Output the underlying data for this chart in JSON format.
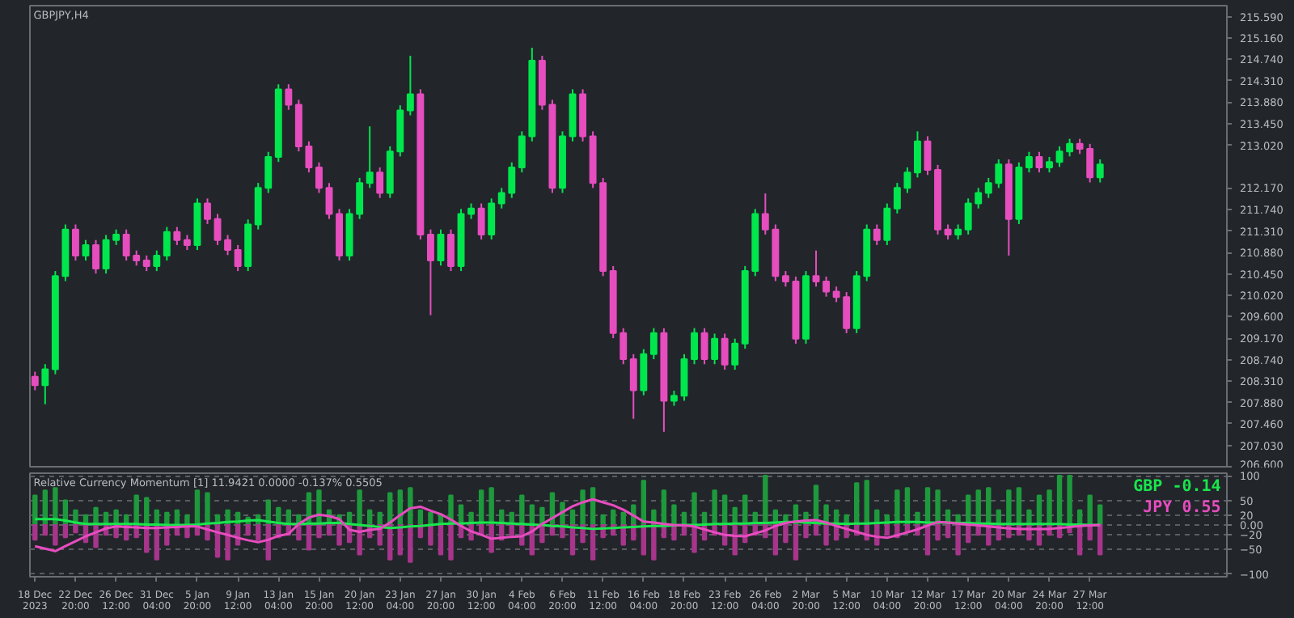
{
  "chart_data": [
    {
      "type": "candlestick",
      "title": "GBPJPY,H4",
      "tick_labels": "y",
      "grid": false,
      "ylim": [
        206.57,
        215.81
      ],
      "yticks": [
        {
          "value": 215.59,
          "label": "215.590"
        },
        {
          "value": 215.16,
          "label": "215.160"
        },
        {
          "value": 214.74,
          "label": "214.740"
        },
        {
          "value": 214.31,
          "label": "214.310"
        },
        {
          "value": 213.88,
          "label": "213.880"
        },
        {
          "value": 213.45,
          "label": "213.450"
        },
        {
          "value": 213.02,
          "label": "213.020"
        },
        {
          "value": 212.17,
          "label": "212.170"
        },
        {
          "value": 211.74,
          "label": "211.740"
        },
        {
          "value": 211.31,
          "label": "211.310"
        },
        {
          "value": 210.88,
          "label": "210.880"
        },
        {
          "value": 210.45,
          "label": "210.450"
        },
        {
          "value": 210.02,
          "label": "210.020"
        },
        {
          "value": 209.6,
          "label": "209.600"
        },
        {
          "value": 209.17,
          "label": "209.170"
        },
        {
          "value": 208.74,
          "label": "208.740"
        },
        {
          "value": 208.31,
          "label": "208.310"
        },
        {
          "value": 207.88,
          "label": "207.880"
        },
        {
          "value": 207.46,
          "label": "207.460"
        },
        {
          "value": 207.03,
          "label": "207.030"
        },
        {
          "value": 206.6,
          "label": "206.600"
        }
      ],
      "categories": [
        null,
        null,
        null,
        null,
        null,
        null,
        null,
        null,
        null,
        null,
        null,
        null,
        null,
        null,
        null,
        null,
        null,
        null,
        null,
        null,
        null,
        null,
        null,
        null,
        null,
        null,
        null,
        null,
        null,
        null,
        null,
        null,
        null,
        null,
        null,
        null,
        null,
        null,
        null,
        null,
        null,
        null,
        null,
        null,
        null,
        null,
        null,
        null,
        null,
        null,
        null,
        null,
        null,
        null,
        null,
        null,
        null,
        null,
        null,
        null,
        null,
        null,
        null,
        null,
        null,
        null,
        null,
        null,
        null,
        null,
        null,
        null,
        null,
        null,
        null,
        null,
        null,
        null,
        null,
        null,
        null,
        null,
        null,
        null,
        null,
        null,
        null,
        null,
        null,
        null,
        null,
        null,
        null,
        null,
        null,
        null,
        null,
        null,
        null,
        null,
        null,
        null,
        null,
        null,
        null,
        null,
        null,
        null,
        null,
        null,
        null,
        null,
        null,
        null,
        null,
        null,
        null,
        null
      ],
      "ohlc": [
        [
          208.4,
          208.5,
          208.13,
          208.23
        ],
        [
          208.23,
          208.65,
          207.85,
          208.55
        ],
        [
          208.55,
          210.51,
          208.45,
          210.41
        ],
        [
          210.41,
          211.44,
          210.31,
          211.34
        ],
        [
          211.34,
          211.44,
          210.72,
          210.82
        ],
        [
          210.82,
          211.13,
          210.72,
          211.03
        ],
        [
          211.03,
          211.13,
          210.46,
          210.56
        ],
        [
          210.56,
          211.23,
          210.46,
          211.13
        ],
        [
          211.13,
          211.34,
          211.03,
          211.24
        ],
        [
          211.24,
          211.34,
          210.72,
          210.82
        ],
        [
          210.82,
          210.92,
          210.62,
          210.72
        ],
        [
          210.72,
          210.82,
          210.51,
          210.61
        ],
        [
          210.61,
          210.92,
          210.51,
          210.82
        ],
        [
          210.82,
          211.39,
          210.72,
          211.29
        ],
        [
          211.29,
          211.39,
          211.03,
          211.13
        ],
        [
          211.13,
          211.23,
          210.93,
          211.03
        ],
        [
          211.03,
          211.96,
          210.93,
          211.86
        ],
        [
          211.86,
          211.96,
          211.45,
          211.55
        ],
        [
          211.55,
          211.65,
          211.03,
          211.13
        ],
        [
          211.13,
          211.23,
          210.83,
          210.93
        ],
        [
          210.93,
          211.03,
          210.51,
          210.61
        ],
        [
          210.61,
          211.54,
          210.51,
          211.44
        ],
        [
          211.44,
          212.27,
          211.34,
          212.17
        ],
        [
          212.17,
          212.89,
          212.07,
          212.79
        ],
        [
          212.79,
          214.24,
          212.69,
          214.14
        ],
        [
          214.14,
          214.24,
          213.73,
          213.83
        ],
        [
          213.83,
          213.93,
          212.9,
          213.0
        ],
        [
          213.0,
          213.1,
          212.48,
          212.58
        ],
        [
          212.58,
          212.68,
          212.07,
          212.17
        ],
        [
          212.17,
          212.27,
          211.55,
          211.65
        ],
        [
          211.65,
          211.75,
          210.72,
          210.82
        ],
        [
          210.82,
          211.75,
          210.72,
          211.65
        ],
        [
          211.65,
          212.37,
          211.55,
          212.27
        ],
        [
          212.27,
          213.4,
          212.17,
          212.48
        ],
        [
          212.48,
          212.58,
          211.97,
          212.07
        ],
        [
          212.07,
          213.0,
          211.97,
          212.9
        ],
        [
          212.9,
          213.82,
          212.8,
          213.72
        ],
        [
          213.72,
          214.81,
          213.62,
          214.04
        ],
        [
          214.04,
          214.14,
          211.14,
          211.24
        ],
        [
          211.24,
          211.34,
          209.63,
          210.72
        ],
        [
          210.72,
          211.34,
          210.62,
          211.24
        ],
        [
          211.24,
          211.34,
          210.51,
          210.61
        ],
        [
          210.61,
          211.75,
          210.51,
          211.65
        ],
        [
          211.65,
          211.86,
          211.55,
          211.76
        ],
        [
          211.76,
          211.86,
          211.14,
          211.24
        ],
        [
          211.24,
          211.96,
          211.14,
          211.86
        ],
        [
          211.86,
          212.17,
          211.76,
          212.07
        ],
        [
          212.07,
          212.68,
          211.97,
          212.58
        ],
        [
          212.58,
          213.3,
          212.48,
          213.2
        ],
        [
          213.2,
          214.97,
          213.1,
          214.71
        ],
        [
          214.71,
          214.81,
          213.73,
          213.83
        ],
        [
          213.83,
          213.93,
          212.07,
          212.17
        ],
        [
          212.17,
          213.3,
          212.07,
          213.2
        ],
        [
          213.2,
          214.14,
          213.1,
          214.04
        ],
        [
          214.04,
          214.14,
          213.1,
          213.2
        ],
        [
          213.2,
          213.3,
          212.17,
          212.27
        ],
        [
          212.27,
          212.37,
          210.41,
          210.51
        ],
        [
          210.51,
          210.61,
          209.17,
          209.27
        ],
        [
          209.27,
          209.37,
          208.65,
          208.75
        ],
        [
          208.75,
          208.85,
          207.56,
          208.13
        ],
        [
          208.13,
          208.95,
          208.03,
          208.85
        ],
        [
          208.85,
          209.37,
          208.75,
          209.27
        ],
        [
          209.27,
          209.37,
          207.3,
          207.92
        ],
        [
          207.92,
          208.12,
          207.82,
          208.02
        ],
        [
          208.02,
          208.85,
          207.92,
          208.75
        ],
        [
          208.75,
          209.37,
          208.65,
          209.27
        ],
        [
          209.27,
          209.37,
          208.65,
          208.75
        ],
        [
          208.75,
          209.26,
          208.65,
          209.16
        ],
        [
          209.16,
          209.26,
          208.54,
          208.64
        ],
        [
          208.64,
          209.16,
          208.54,
          209.06
        ],
        [
          209.06,
          210.61,
          208.96,
          210.51
        ],
        [
          210.51,
          211.75,
          210.41,
          211.65
        ],
        [
          211.65,
          212.06,
          211.24,
          211.34
        ],
        [
          211.34,
          211.44,
          210.31,
          210.41
        ],
        [
          210.41,
          210.51,
          210.2,
          210.3
        ],
        [
          210.3,
          210.4,
          209.06,
          209.16
        ],
        [
          209.16,
          210.51,
          209.06,
          210.41
        ],
        [
          210.41,
          210.92,
          210.2,
          210.3
        ],
        [
          210.3,
          210.4,
          210.0,
          210.1
        ],
        [
          210.1,
          210.2,
          209.89,
          209.99
        ],
        [
          209.99,
          210.09,
          209.27,
          209.37
        ],
        [
          209.37,
          210.51,
          209.27,
          210.41
        ],
        [
          210.41,
          211.44,
          210.31,
          211.34
        ],
        [
          211.34,
          211.44,
          211.03,
          211.13
        ],
        [
          211.13,
          211.86,
          211.03,
          211.76
        ],
        [
          211.76,
          212.27,
          211.66,
          212.17
        ],
        [
          212.17,
          212.58,
          212.07,
          212.48
        ],
        [
          212.48,
          213.3,
          212.38,
          213.1
        ],
        [
          213.1,
          213.2,
          212.43,
          212.53
        ],
        [
          212.53,
          212.63,
          211.24,
          211.34
        ],
        [
          211.34,
          211.44,
          211.14,
          211.24
        ],
        [
          211.24,
          211.44,
          211.14,
          211.34
        ],
        [
          211.34,
          211.96,
          211.24,
          211.86
        ],
        [
          211.86,
          212.17,
          211.76,
          212.07
        ],
        [
          212.07,
          212.37,
          211.97,
          212.27
        ],
        [
          212.27,
          212.74,
          212.17,
          212.64
        ],
        [
          212.64,
          212.74,
          210.82,
          211.55
        ],
        [
          211.55,
          212.68,
          211.45,
          212.58
        ],
        [
          212.58,
          212.89,
          212.48,
          212.79
        ],
        [
          212.79,
          212.89,
          212.48,
          212.58
        ],
        [
          212.58,
          212.79,
          212.48,
          212.69
        ],
        [
          212.69,
          213.0,
          212.59,
          212.9
        ],
        [
          212.9,
          213.15,
          212.8,
          213.05
        ],
        [
          213.05,
          213.15,
          212.85,
          212.95
        ],
        [
          212.95,
          213.05,
          212.28,
          212.38
        ],
        [
          212.38,
          212.74,
          212.28,
          212.64
        ],
        null,
        null,
        null,
        null,
        null,
        null,
        null,
        null,
        null,
        null,
        null,
        null
      ],
      "colors": [
        "#e64dbe",
        "#00e64d",
        "#00e64d",
        "#00e64d",
        "#e64dbe",
        "#00e64d",
        "#e64dbe",
        "#00e64d",
        "#00e64d",
        "#e64dbe",
        "#e64dbe",
        "#e64dbe",
        "#00e64d",
        "#00e64d",
        "#e64dbe",
        "#e64dbe",
        "#00e64d",
        "#e64dbe",
        "#e64dbe",
        "#e64dbe",
        "#e64dbe",
        "#00e64d",
        "#00e64d",
        "#00e64d",
        "#00e64d",
        "#e64dbe",
        "#e64dbe",
        "#e64dbe",
        "#e64dbe",
        "#e64dbe",
        "#e64dbe",
        "#00e64d",
        "#00e64d",
        "#00e64d",
        "#e64dbe",
        "#00e64d",
        "#00e64d",
        "#00e64d",
        "#e64dbe",
        "#e64dbe",
        "#00e64d",
        "#e64dbe",
        "#00e64d",
        "#00e64d",
        "#e64dbe",
        "#00e64d",
        "#00e64d",
        "#00e64d",
        "#00e64d",
        "#00e64d",
        "#e64dbe",
        "#e64dbe",
        "#00e64d",
        "#00e64d",
        "#e64dbe",
        "#e64dbe",
        "#e64dbe",
        "#e64dbe",
        "#e64dbe",
        "#e64dbe",
        "#00e64d",
        "#00e64d",
        "#e64dbe",
        "#00e64d",
        "#00e64d",
        "#00e64d",
        "#e64dbe",
        "#00e64d",
        "#e64dbe",
        "#00e64d",
        "#00e64d",
        "#00e64d",
        "#e64dbe",
        "#e64dbe",
        "#e64dbe",
        "#e64dbe",
        "#00e64d",
        "#e64dbe",
        "#e64dbe",
        "#e64dbe",
        "#e64dbe",
        "#00e64d",
        "#00e64d",
        "#e64dbe",
        "#00e64d",
        "#00e64d",
        "#00e64d",
        "#00e64d",
        "#e64dbe",
        "#e64dbe",
        "#e64dbe",
        "#00e64d",
        "#00e64d",
        "#00e64d",
        "#00e64d",
        "#00e64d",
        "#e64dbe",
        "#00e64d",
        "#00e64d",
        "#e64dbe",
        "#00e64d",
        "#00e64d",
        "#00e64d",
        "#e64dbe",
        "#e64dbe",
        "#00e64d",
        null,
        null,
        null,
        null,
        null,
        null,
        null,
        null,
        null,
        null,
        null,
        null
      ]
    },
    {
      "type": "bar",
      "stacked": true,
      "title": "Relative Currency Momentum [1] 11.9421 0.0000 -0.137% 0.5505",
      "grid": "y",
      "ylim": [
        -105,
        105
      ],
      "yticks": [
        100,
        50,
        20,
        {
          "value": 0,
          "label": "0.00"
        },
        -20,
        -50,
        -100
      ],
      "categories": [
        "18 Dec 2023",
        null,
        null,
        null,
        "22 Dec 20:00",
        null,
        null,
        null,
        "26 Dec 12:00",
        null,
        null,
        null,
        "31 Dec 04:00",
        null,
        null,
        null,
        "5 Jan 20:00",
        null,
        null,
        null,
        "9 Jan 12:00",
        null,
        null,
        null,
        "13 Jan 04:00",
        null,
        null,
        null,
        "15 Jan 20:00",
        null,
        null,
        null,
        "20 Jan 12:00",
        null,
        null,
        null,
        "23 Jan 04:00",
        null,
        null,
        null,
        "27 Jan 20:00",
        null,
        null,
        null,
        "30 Jan 12:00",
        null,
        null,
        null,
        "4 Feb 04:00",
        null,
        null,
        null,
        "6 Feb 20:00",
        null,
        null,
        null,
        "11 Feb 12:00",
        null,
        null,
        null,
        "16 Feb 04:00",
        null,
        null,
        null,
        "18 Feb 20:00",
        null,
        null,
        null,
        "23 Feb 12:00",
        null,
        null,
        null,
        "26 Feb 04:00",
        null,
        null,
        null,
        "2 Mar 20:00",
        null,
        null,
        null,
        "5 Mar 12:00",
        null,
        null,
        null,
        "10 Mar 04:00",
        null,
        null,
        null,
        "12 Mar 20:00",
        null,
        null,
        null,
        "17 Mar 12:00",
        null,
        null,
        null,
        "20 Mar 04:00",
        null,
        null,
        null,
        "24 Mar 20:00",
        null,
        null,
        null,
        "27 Mar 12:00",
        null,
        null,
        null,
        null,
        null,
        null,
        null,
        null,
        null,
        null,
        null,
        null,
        null
      ],
      "series": [
        {
          "type": "bar",
          "color": "#1e9a3c",
          "values": [
            60,
            70,
            75,
            50,
            30,
            20,
            35,
            25,
            30,
            20,
            60,
            55,
            30,
            25,
            30,
            20,
            70,
            65,
            20,
            30,
            25,
            15,
            20,
            50,
            35,
            30,
            20,
            65,
            70,
            30,
            20,
            25,
            70,
            30,
            25,
            65,
            70,
            75,
            30,
            25,
            20,
            60,
            40,
            25,
            70,
            75,
            30,
            25,
            60,
            40,
            35,
            65,
            45,
            30,
            70,
            75,
            20,
            30,
            25,
            40,
            90,
            30,
            70,
            40,
            25,
            65,
            25,
            70,
            60,
            35,
            60,
            25,
            100,
            30,
            20,
            40,
            25,
            80,
            40,
            30,
            20,
            85,
            90,
            30,
            20,
            70,
            75,
            25,
            75,
            70,
            30,
            20,
            60,
            70,
            75,
            30,
            70,
            75,
            30,
            60,
            70,
            100,
            100,
            30,
            60,
            40,
            null,
            null,
            null,
            null,
            null,
            null,
            null,
            null,
            null,
            null,
            null,
            null
          ]
        },
        {
          "type": "bar",
          "color": "#a8358c",
          "values": [
            -30,
            -20,
            -40,
            -25,
            -15,
            -35,
            -45,
            -20,
            -25,
            -30,
            -25,
            -55,
            -70,
            -40,
            -20,
            -25,
            -20,
            -30,
            -65,
            -70,
            -40,
            -20,
            -30,
            -70,
            -25,
            -20,
            -30,
            -50,
            -25,
            -20,
            -40,
            -35,
            -60,
            -25,
            -40,
            -70,
            -60,
            -75,
            -25,
            -40,
            -60,
            -70,
            -25,
            -30,
            -20,
            -55,
            -30,
            -20,
            -40,
            -60,
            -35,
            -20,
            -25,
            -60,
            -35,
            -70,
            -25,
            -20,
            -40,
            -30,
            -60,
            -70,
            -25,
            -30,
            -20,
            -55,
            -30,
            -20,
            -40,
            -60,
            -35,
            -20,
            -25,
            -60,
            -35,
            -70,
            -25,
            -20,
            -40,
            -30,
            -25,
            -20,
            -30,
            -40,
            -20,
            -25,
            -15,
            -20,
            -60,
            -30,
            -25,
            -60,
            -35,
            -20,
            -40,
            -30,
            -25,
            -20,
            -30,
            -40,
            -20,
            -25,
            -15,
            -60,
            -30,
            -60,
            null,
            null,
            null,
            null,
            null,
            null,
            null,
            null,
            null,
            null,
            null,
            null
          ]
        },
        {
          "type": "line",
          "name": "GBP -0.14",
          "color": "#19e64d",
          "values": [
            12,
            12,
            12,
            9,
            5,
            2,
            2,
            2,
            2,
            2,
            2,
            1,
            1,
            0,
            0,
            0,
            1,
            3,
            4,
            6,
            7,
            9,
            10,
            7,
            4,
            2,
            2,
            3,
            3,
            4,
            4,
            2,
            0,
            -2,
            -4,
            -6,
            -5,
            -3,
            -2,
            0,
            2,
            3,
            3,
            4,
            5,
            5,
            4,
            3,
            2,
            1,
            0,
            -2,
            -3,
            -5,
            -6,
            -8,
            -7,
            -6,
            -5,
            -4,
            -3,
            -2,
            -2,
            -1,
            0,
            0,
            1,
            2,
            2,
            3,
            3,
            4,
            4,
            5,
            6,
            6,
            5,
            4,
            3,
            3,
            2,
            3,
            3,
            4,
            5,
            6,
            6,
            6,
            5,
            5,
            5,
            4,
            4,
            3,
            3,
            2,
            2,
            2,
            2,
            2,
            2,
            2,
            1,
            1,
            0,
            0,
            null,
            null,
            null,
            null,
            null,
            null,
            null,
            null,
            null,
            null,
            null,
            null
          ]
        },
        {
          "type": "line",
          "name": "JPY 0.55",
          "color": "#e84cc0",
          "values": [
            -43,
            -48,
            -53,
            -43,
            -33,
            -23,
            -15,
            -7,
            -3,
            -4,
            -5,
            -6,
            -6,
            -5,
            -4,
            -3,
            -3,
            -9,
            -15,
            -20,
            -26,
            -31,
            -35,
            -30,
            -22,
            -18,
            2,
            15,
            21,
            18,
            12,
            -10,
            -14,
            -10,
            -8,
            5,
            20,
            34,
            37,
            29,
            22,
            11,
            -2,
            -13,
            -20,
            -28,
            -26,
            -24,
            -23,
            -13,
            2,
            14,
            26,
            38,
            46,
            52,
            46,
            40,
            31,
            19,
            7,
            5,
            2,
            0,
            -1,
            -3,
            -9,
            -15,
            -20,
            -22,
            -23,
            -17,
            -11,
            -2,
            4,
            7,
            9,
            10,
            5,
            -2,
            -8,
            -14,
            -20,
            -24,
            -26,
            -21,
            -15,
            -9,
            -1,
            6,
            5,
            3,
            1,
            -1,
            -3,
            -5,
            -7,
            -8,
            -8,
            -8,
            -8,
            -6,
            -4,
            -2,
            -1,
            0,
            null,
            null,
            null,
            null,
            null,
            null,
            null,
            null,
            null,
            null,
            null,
            null
          ]
        }
      ]
    }
  ]
}
